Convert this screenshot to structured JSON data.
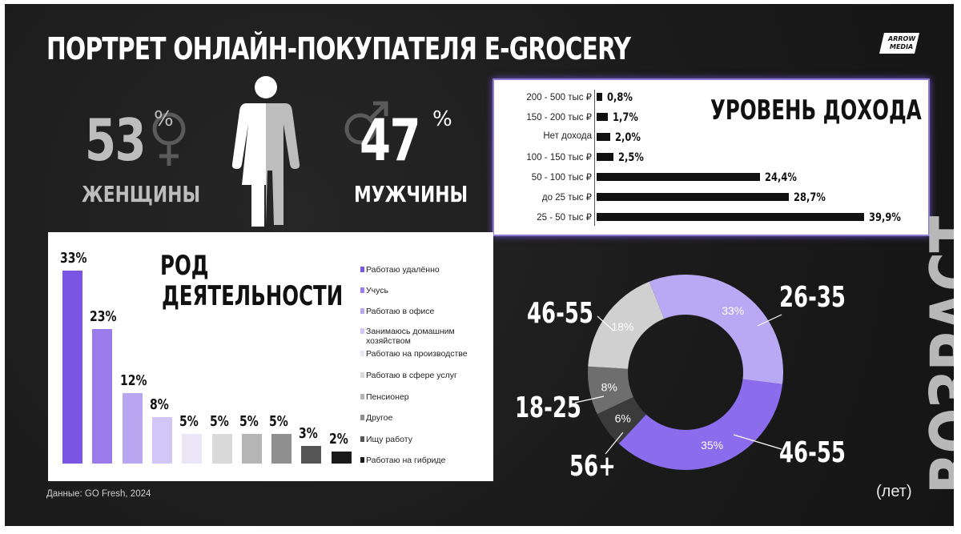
{
  "title": "ПОРТРЕТ ОНЛАЙН-ПОКУПАТЕЛЯ E-GROCERY",
  "logo": {
    "line1": "ARROW",
    "line2": "MEDIA"
  },
  "gender": {
    "women": {
      "value": "53",
      "unit": "%",
      "label": "ЖЕНЩИНЫ"
    },
    "men": {
      "value": "47",
      "unit": "%",
      "label": "МУЖЧИНЫ"
    }
  },
  "source": "Данные: GO Fresh, 2024",
  "age_axis_title": "ВОЗРАСТ",
  "age_unit": "(лет)",
  "colors": {
    "background": "#1b1b1b",
    "accent": "#8e7bd6",
    "purple_dark": "#7a5ce6",
    "white": "#ffffff"
  },
  "chart_data": [
    {
      "type": "bar",
      "orientation": "horizontal",
      "title": "УРОВЕНЬ ДОХОДА",
      "categories": [
        "200 - 500 тыс ₽",
        "150 - 200 тыс ₽",
        "Нет дохода",
        "100 - 150 тыс ₽",
        "50 - 100 тыс ₽",
        "до 25 тыс ₽",
        "25 - 50 тыс ₽"
      ],
      "values": [
        0.8,
        1.7,
        2.0,
        2.5,
        24.4,
        28.7,
        39.9
      ],
      "value_labels": [
        "0,8%",
        "1,7%",
        "2,0%",
        "2,5%",
        "24,4%",
        "28,7%",
        "39,9%"
      ],
      "xlim": [
        0,
        40
      ]
    },
    {
      "type": "bar",
      "title": "РОД ДЕЯТЕЛЬНОСТИ",
      "categories": [
        "Работаю удалённо",
        "Учусь",
        "Работаю в офисе",
        "Занимаюсь домашним хозяйством",
        "Работаю на производстве",
        "Работаю в сфере услуг",
        "Пенсионер",
        "Другое",
        "Ищу работу",
        "Работаю на гибриде"
      ],
      "values": [
        33,
        23,
        12,
        8,
        5,
        5,
        5,
        5,
        3,
        2
      ],
      "value_labels": [
        "33%",
        "23%",
        "12%",
        "8%",
        "5%",
        "5%",
        "5%",
        "5%",
        "3%",
        "2%"
      ],
      "colors": [
        "#7a55e3",
        "#9b7cec",
        "#b8a6f1",
        "#d2c6f6",
        "#eae6f8",
        "#d9d9d9",
        "#b5b5b5",
        "#8f8f8f",
        "#555555",
        "#1a1a1a"
      ],
      "legend": "right",
      "ylim": [
        0,
        33
      ]
    },
    {
      "type": "pie",
      "style": "donut",
      "title": "ВОЗРАСТ",
      "slices": [
        {
          "label": "26-35",
          "value": 33,
          "value_label": "33%",
          "color": "#b9a8f3"
        },
        {
          "label": "46-55",
          "value": 35,
          "value_label": "35%",
          "color": "#8b6ced"
        },
        {
          "label": "56+",
          "value": 6,
          "value_label": "6%",
          "color": "#3b3b3b"
        },
        {
          "label": "18-25",
          "value": 8,
          "value_label": "8%",
          "color": "#6e6e6e"
        },
        {
          "label": "46-55",
          "value": 18,
          "value_label": "18%",
          "color": "#d0d0d0"
        }
      ]
    }
  ]
}
